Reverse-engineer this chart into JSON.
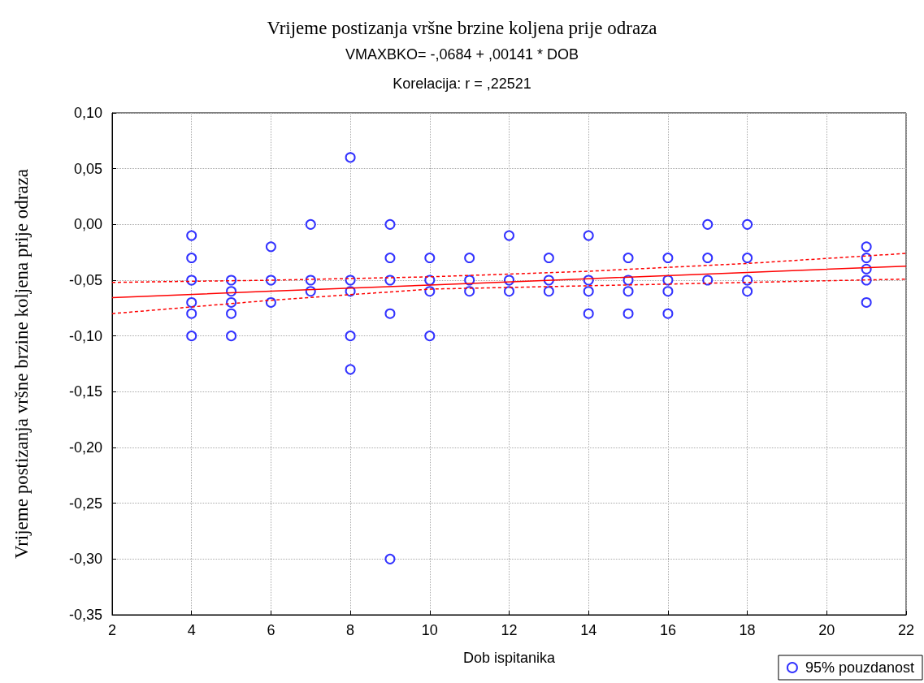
{
  "chart_data": {
    "type": "scatter",
    "title": "Vrijeme postizanja vršne brzine koljena prije odraza",
    "subtitle": "VMAXBKO= -,0684 + ,00141 * DOB",
    "annotations": [
      "Korelacija: r = ,22521"
    ],
    "xlabel": "Dob ispitanika",
    "ylabel": "Vrijeme postizanja vršne brzine koljena prije odraza",
    "xlim": [
      2,
      22
    ],
    "xticks": [
      2,
      4,
      6,
      8,
      10,
      12,
      14,
      16,
      18,
      20,
      22
    ],
    "ylim": [
      -0.35,
      0.1
    ],
    "yticks": [
      {
        "value": -0.35,
        "label": "-0,35"
      },
      {
        "value": -0.3,
        "label": "-0,30"
      },
      {
        "value": -0.25,
        "label": "-0,25"
      },
      {
        "value": -0.2,
        "label": "-0,20"
      },
      {
        "value": -0.15,
        "label": "-0,15"
      },
      {
        "value": -0.1,
        "label": "-0,10"
      },
      {
        "value": -0.05,
        "label": "-0,05"
      },
      {
        "value": 0,
        "label": "0,00"
      },
      {
        "value": 0.05,
        "label": "0,05"
      },
      {
        "value": 0.1,
        "label": "0,10"
      }
    ],
    "grid": true,
    "legend": "bottom right",
    "marker": "circle",
    "series": [
      {
        "name": "95% pouzdanost",
        "color": "#0000ff",
        "x": [
          4,
          4,
          4,
          4,
          4,
          4,
          5,
          5,
          5,
          5,
          5,
          6,
          6,
          6,
          7,
          7,
          7,
          8,
          8,
          8,
          8,
          8,
          9,
          9,
          9,
          9,
          9,
          10,
          10,
          10,
          10,
          11,
          11,
          11,
          12,
          12,
          12,
          13,
          13,
          13,
          14,
          14,
          14,
          14,
          15,
          15,
          15,
          15,
          16,
          16,
          16,
          16,
          17,
          17,
          17,
          18,
          18,
          18,
          18,
          21,
          21,
          21,
          21,
          21
        ],
        "values": [
          -0.01,
          -0.03,
          -0.05,
          -0.07,
          -0.08,
          -0.1,
          -0.05,
          -0.06,
          -0.07,
          -0.08,
          -0.1,
          -0.02,
          -0.05,
          -0.07,
          0,
          -0.05,
          -0.06,
          0.06,
          -0.05,
          -0.06,
          -0.1,
          -0.13,
          0,
          -0.03,
          -0.05,
          -0.08,
          -0.3,
          -0.03,
          -0.05,
          -0.06,
          -0.1,
          -0.03,
          -0.05,
          -0.06,
          -0.01,
          -0.05,
          -0.06,
          -0.03,
          -0.05,
          -0.06,
          -0.01,
          -0.05,
          -0.06,
          -0.08,
          -0.03,
          -0.05,
          -0.06,
          -0.08,
          -0.03,
          -0.05,
          -0.06,
          -0.08,
          0,
          -0.03,
          -0.05,
          0,
          -0.03,
          -0.05,
          -0.06,
          -0.02,
          -0.03,
          -0.04,
          -0.05,
          -0.07
        ]
      },
      {
        "type": "line",
        "color": "#ff0000",
        "line_style": "solid",
        "marker": "none",
        "x": [
          2,
          6,
          10,
          14,
          18,
          22
        ],
        "values": [
          -0.0656,
          -0.0599,
          -0.0543,
          -0.0487,
          -0.043,
          -0.0374
        ]
      },
      {
        "type": "line",
        "color": "#ff0000",
        "line_style": "dashed",
        "marker": "none",
        "x": [
          2,
          6,
          10,
          14,
          18,
          22
        ],
        "values": [
          -0.08,
          -0.068,
          -0.058,
          -0.055,
          -0.052,
          -0.049
        ]
      },
      {
        "type": "line",
        "color": "#ff0000",
        "line_style": "dashed",
        "marker": "none",
        "x": [
          2,
          6,
          10,
          14,
          18,
          22
        ],
        "values": [
          -0.052,
          -0.05,
          -0.047,
          -0.042,
          -0.035,
          -0.026
        ]
      }
    ]
  }
}
